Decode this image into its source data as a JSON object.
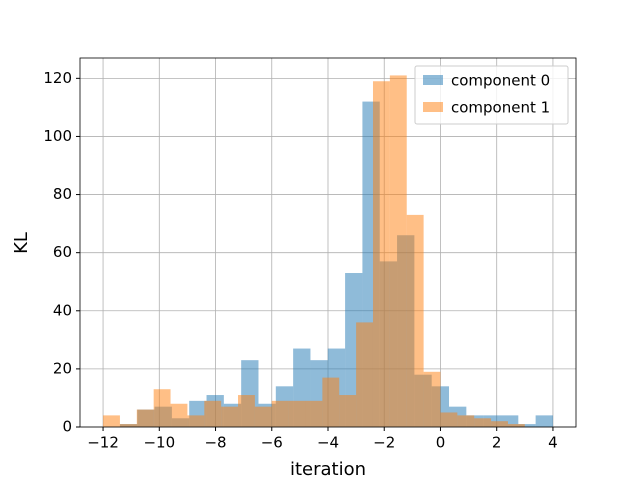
{
  "chart_data": {
    "type": "histogram",
    "xlabel": "iteration",
    "ylabel": "KL",
    "xlim": [
      -12.82,
      4.82
    ],
    "ylim": [
      0,
      127
    ],
    "xticks": [
      {
        "value": -12,
        "label": "−12"
      },
      {
        "value": -10,
        "label": "−10"
      },
      {
        "value": -8,
        "label": "−8"
      },
      {
        "value": -6,
        "label": "−6"
      },
      {
        "value": -4,
        "label": "−4"
      },
      {
        "value": -2,
        "label": "−2"
      },
      0,
      2,
      4
    ],
    "yticks": [
      0,
      20,
      40,
      60,
      80,
      100,
      120
    ],
    "grid": true,
    "legend": "upper right",
    "alpha": 0.5,
    "series": [
      {
        "name": "component 0",
        "color": "#1f77b4",
        "bins": [
          -11.4,
          -10.784,
          -10.168,
          -9.552,
          -8.936,
          -8.32,
          -7.704,
          -7.088,
          -6.472,
          -5.856,
          -5.24,
          -4.624,
          -4.008,
          -3.392,
          -2.776,
          -2.16,
          -1.544,
          -0.928,
          -0.312,
          0.304,
          0.92,
          1.536,
          2.152,
          2.768,
          3.384,
          4.0
        ],
        "values": [
          1,
          6,
          7,
          3,
          9,
          11,
          8,
          23,
          8,
          14,
          27,
          23,
          27,
          53,
          112,
          57,
          66,
          18,
          14,
          7,
          4,
          4,
          4,
          1,
          4
        ]
      },
      {
        "name": "component 1",
        "color": "#ff7f0e",
        "bins": [
          -12.0,
          -11.4,
          -10.8,
          -10.2,
          -9.6,
          -9.0,
          -8.4,
          -7.8,
          -7.2,
          -6.6,
          -6.0,
          -5.4,
          -4.8,
          -4.2,
          -3.6,
          -3.0,
          -2.4,
          -1.8,
          -1.2,
          -0.6,
          0.0,
          0.6,
          1.2,
          1.8,
          2.4,
          3.0
        ],
        "values": [
          4,
          1,
          6,
          13,
          8,
          4,
          9,
          7,
          11,
          7,
          9,
          9,
          9,
          17,
          11,
          36,
          119,
          121,
          73,
          19,
          5,
          4,
          3,
          2,
          1
        ]
      }
    ]
  }
}
